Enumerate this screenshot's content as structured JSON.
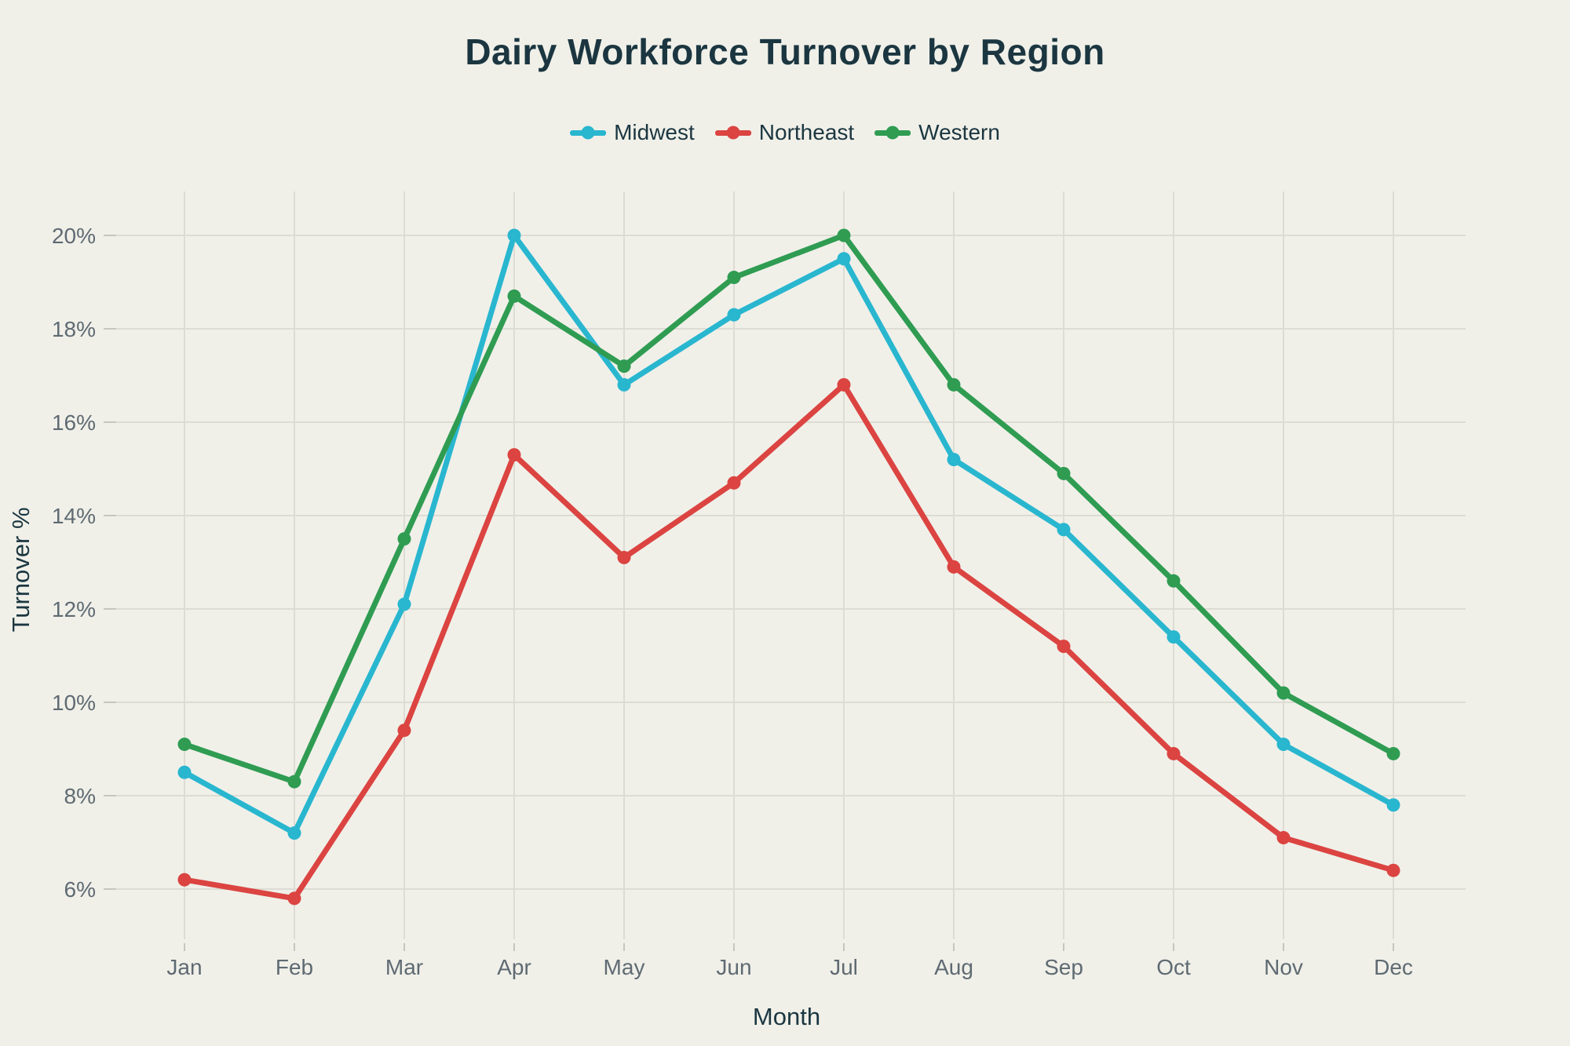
{
  "page": {
    "background_color": "#f0f0e9"
  },
  "chart_data": {
    "type": "line",
    "title": "Dairy Workforce Turnover by Region",
    "xlabel": "Month",
    "ylabel": "Turnover %",
    "categories": [
      "Jan",
      "Feb",
      "Mar",
      "Apr",
      "May",
      "Jun",
      "Jul",
      "Aug",
      "Sep",
      "Oct",
      "Nov",
      "Dec"
    ],
    "y_ticks": [
      "6%",
      "8%",
      "10%",
      "12%",
      "14%",
      "16%",
      "18%",
      "20%"
    ],
    "y_tick_values": [
      6,
      8,
      10,
      12,
      14,
      16,
      18,
      20
    ],
    "ylim": [
      4.9,
      20.95
    ],
    "grid": true,
    "legend_position": "top-center",
    "series": [
      {
        "name": "Midwest",
        "color": "#29b6cf",
        "values": [
          8.5,
          7.2,
          12.1,
          20.0,
          16.8,
          18.3,
          19.5,
          15.2,
          13.7,
          11.4,
          9.1,
          7.8
        ]
      },
      {
        "name": "Northeast",
        "color": "#db4441",
        "values": [
          6.2,
          5.8,
          9.4,
          15.3,
          13.1,
          14.7,
          16.8,
          12.9,
          11.2,
          8.9,
          7.1,
          6.4
        ]
      },
      {
        "name": "Western",
        "color": "#2f9c52",
        "values": [
          9.1,
          8.3,
          13.5,
          18.7,
          17.2,
          19.1,
          20.0,
          16.8,
          14.9,
          12.6,
          10.2,
          8.9
        ]
      }
    ],
    "colors": {
      "background": "#f0f0e9",
      "gridline": "#dddcd4",
      "tick_mark": "#c7c6be",
      "tick_label": "#5f6a72",
      "text": "#1b3640"
    }
  }
}
